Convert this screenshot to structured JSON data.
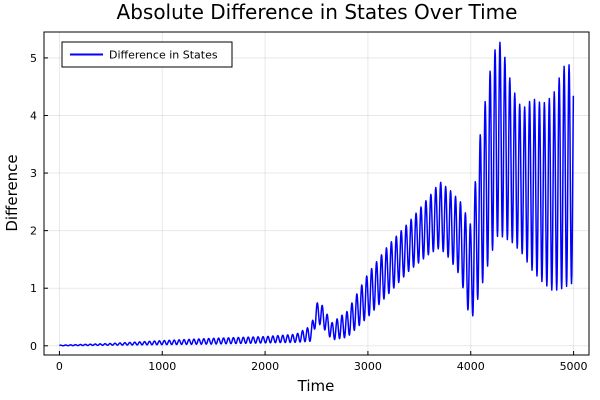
{
  "chart_data": {
    "type": "line",
    "title": "Absolute Difference in States Over Time",
    "xlabel": "Time",
    "ylabel": "Difference",
    "xlim": [
      -150,
      5150
    ],
    "ylim": [
      -0.16,
      5.45
    ],
    "xticks": [
      0,
      1000,
      2000,
      3000,
      4000,
      5000
    ],
    "yticks": [
      0,
      1,
      2,
      3,
      4,
      5
    ],
    "grid": true,
    "legend": "top-left",
    "series": [
      {
        "name": "Difference in States",
        "color": "#0000ff",
        "envelope_t": [
          0,
          500,
          1000,
          1500,
          2000,
          2300,
          2450,
          2500,
          2550,
          2650,
          2800,
          3000,
          3200,
          3400,
          3600,
          3700,
          3800,
          3900,
          4000,
          4100,
          4200,
          4260,
          4300,
          4400,
          4500,
          4600,
          4700,
          4800,
          4900,
          5000
        ],
        "envelope_low": [
          0,
          0.01,
          0.02,
          0.03,
          0.05,
          0.06,
          0.08,
          0.4,
          0.35,
          0.1,
          0.15,
          0.5,
          0.9,
          1.3,
          1.6,
          1.7,
          1.5,
          1.2,
          0.4,
          1.0,
          1.6,
          1.9,
          1.9,
          1.8,
          1.6,
          1.3,
          1.1,
          0.95,
          1.0,
          1.1
        ],
        "envelope_high": [
          0.01,
          0.04,
          0.09,
          0.13,
          0.16,
          0.2,
          0.35,
          0.75,
          0.72,
          0.4,
          0.6,
          1.25,
          1.75,
          2.15,
          2.6,
          2.85,
          2.7,
          2.5,
          2.1,
          3.8,
          4.9,
          5.3,
          5.25,
          4.5,
          4.1,
          4.3,
          4.2,
          4.35,
          4.85,
          4.9
        ],
        "period": 48
      }
    ]
  }
}
